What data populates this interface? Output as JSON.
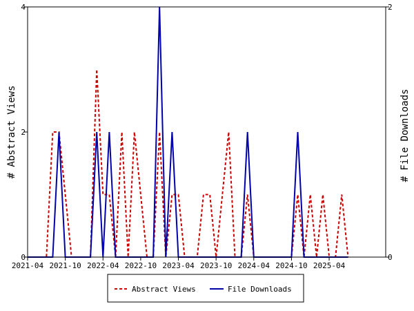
{
  "chart_data": {
    "type": "line",
    "title": "",
    "y_left_label": "# Abstract Views",
    "y_right_label": "# File Downloads",
    "y_left_range": [
      0,
      4
    ],
    "y_left_ticks": [
      0,
      2,
      4
    ],
    "y_right_range": [
      0,
      2
    ],
    "y_right_ticks": [
      0,
      2
    ],
    "x_range": [
      "2021-04",
      "2026-01"
    ],
    "x_ticks": [
      "2021-04",
      "2021-10",
      "2022-04",
      "2022-10",
      "2023-04",
      "2023-10",
      "2024-04",
      "2024-10",
      "2025-04"
    ],
    "grid": false,
    "legend_position": "bottom",
    "series": [
      {
        "name": "Abstract Views",
        "axis": "left",
        "color": "#cc0000",
        "style": "dashed",
        "points": [
          [
            "2021-04",
            0
          ],
          [
            "2021-05",
            0
          ],
          [
            "2021-06",
            0
          ],
          [
            "2021-07",
            0
          ],
          [
            "2021-08",
            2
          ],
          [
            "2021-09",
            2
          ],
          [
            "2021-10",
            1
          ],
          [
            "2021-11",
            0
          ],
          [
            "2021-12",
            0
          ],
          [
            "2022-01",
            0
          ],
          [
            "2022-02",
            0
          ],
          [
            "2022-03",
            3
          ],
          [
            "2022-04",
            1
          ],
          [
            "2022-05",
            1
          ],
          [
            "2022-06",
            0
          ],
          [
            "2022-07",
            2
          ],
          [
            "2022-08",
            0
          ],
          [
            "2022-09",
            2
          ],
          [
            "2022-10",
            1
          ],
          [
            "2022-11",
            0
          ],
          [
            "2022-12",
            0
          ],
          [
            "2023-01",
            2
          ],
          [
            "2023-02",
            0
          ],
          [
            "2023-03",
            1
          ],
          [
            "2023-04",
            1
          ],
          [
            "2023-05",
            0
          ],
          [
            "2023-06",
            0
          ],
          [
            "2023-07",
            0
          ],
          [
            "2023-08",
            1
          ],
          [
            "2023-09",
            1
          ],
          [
            "2023-10",
            0
          ],
          [
            "2023-11",
            1
          ],
          [
            "2023-12",
            2
          ],
          [
            "2024-01",
            0
          ],
          [
            "2024-02",
            0
          ],
          [
            "2024-03",
            1
          ],
          [
            "2024-04",
            0
          ],
          [
            "2024-05",
            0
          ],
          [
            "2024-06",
            0
          ],
          [
            "2024-07",
            0
          ],
          [
            "2024-08",
            0
          ],
          [
            "2024-09",
            0
          ],
          [
            "2024-10",
            0
          ],
          [
            "2024-11",
            1
          ],
          [
            "2024-12",
            0
          ],
          [
            "2025-01",
            1
          ],
          [
            "2025-02",
            0
          ],
          [
            "2025-03",
            1
          ],
          [
            "2025-04",
            0
          ],
          [
            "2025-05",
            0
          ],
          [
            "2025-06",
            1
          ],
          [
            "2025-07",
            0
          ]
        ]
      },
      {
        "name": "File Downloads",
        "axis": "right",
        "color": "#0000aa",
        "style": "solid",
        "points": [
          [
            "2021-04",
            0
          ],
          [
            "2021-05",
            0
          ],
          [
            "2021-06",
            0
          ],
          [
            "2021-07",
            0
          ],
          [
            "2021-08",
            0
          ],
          [
            "2021-09",
            1
          ],
          [
            "2021-10",
            0
          ],
          [
            "2021-11",
            0
          ],
          [
            "2021-12",
            0
          ],
          [
            "2022-01",
            0
          ],
          [
            "2022-02",
            0
          ],
          [
            "2022-03",
            1
          ],
          [
            "2022-04",
            0
          ],
          [
            "2022-05",
            1
          ],
          [
            "2022-06",
            0
          ],
          [
            "2022-07",
            0
          ],
          [
            "2022-08",
            0
          ],
          [
            "2022-09",
            0
          ],
          [
            "2022-10",
            0
          ],
          [
            "2022-11",
            0
          ],
          [
            "2022-12",
            0
          ],
          [
            "2023-01",
            2
          ],
          [
            "2023-02",
            0
          ],
          [
            "2023-03",
            1
          ],
          [
            "2023-04",
            0
          ],
          [
            "2023-05",
            0
          ],
          [
            "2023-06",
            0
          ],
          [
            "2023-07",
            0
          ],
          [
            "2023-08",
            0
          ],
          [
            "2023-09",
            0
          ],
          [
            "2023-10",
            0
          ],
          [
            "2023-11",
            0
          ],
          [
            "2023-12",
            0
          ],
          [
            "2024-01",
            0
          ],
          [
            "2024-02",
            0
          ],
          [
            "2024-03",
            1
          ],
          [
            "2024-04",
            0
          ],
          [
            "2024-05",
            0
          ],
          [
            "2024-06",
            0
          ],
          [
            "2024-07",
            0
          ],
          [
            "2024-08",
            0
          ],
          [
            "2024-09",
            0
          ],
          [
            "2024-10",
            0
          ],
          [
            "2024-11",
            1
          ],
          [
            "2024-12",
            0
          ],
          [
            "2025-01",
            0
          ],
          [
            "2025-02",
            0
          ],
          [
            "2025-03",
            0
          ],
          [
            "2025-04",
            0
          ],
          [
            "2025-05",
            0
          ],
          [
            "2025-06",
            0
          ],
          [
            "2025-07",
            0
          ]
        ]
      }
    ]
  }
}
